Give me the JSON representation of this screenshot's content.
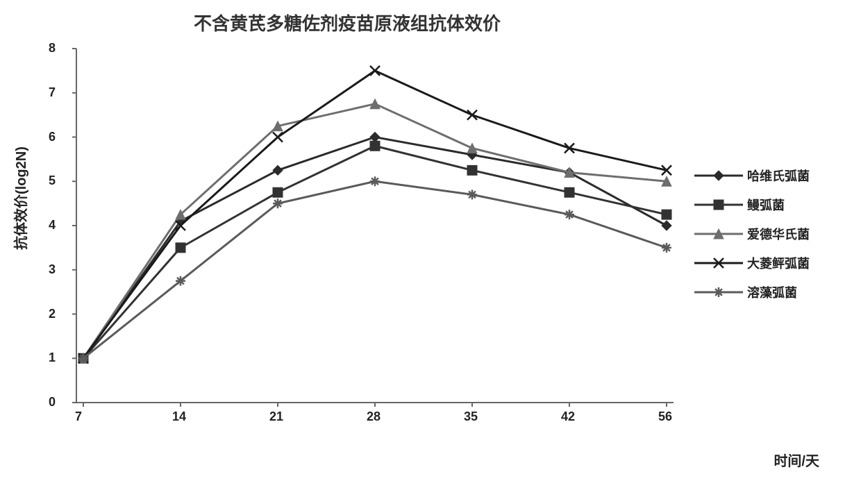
{
  "chart": {
    "type": "line",
    "title": "不含黄芪多糖佐剂疫苗原液组抗体效价",
    "title_fontsize": 26,
    "x_label": "时间/天",
    "y_label": "抗体效价(log2N)",
    "label_fontsize": 20,
    "tick_fontsize": 18,
    "legend_fontsize": 18,
    "background_color": "#ffffff",
    "axis_color": "#666666",
    "tick_color": "#666666",
    "x_categories": [
      "7",
      "14",
      "21",
      "28",
      "35",
      "42",
      "56"
    ],
    "y_ticks": [
      0,
      1,
      2,
      3,
      4,
      5,
      6,
      7,
      8
    ],
    "ylim": [
      0,
      8
    ],
    "line_width": 3,
    "marker_size": 7,
    "series": [
      {
        "name": "哈维氏弧菌",
        "marker": "diamond",
        "color": "#2b2b2b",
        "values": [
          1.0,
          4.1,
          5.25,
          6.0,
          5.6,
          5.2,
          4.0
        ]
      },
      {
        "name": "鳗弧菌",
        "marker": "square",
        "color": "#323232",
        "values": [
          1.0,
          3.5,
          4.75,
          5.8,
          5.25,
          4.75,
          4.25
        ]
      },
      {
        "name": "爱德华氏菌",
        "marker": "triangle",
        "color": "#6e6e6e",
        "values": [
          1.0,
          4.25,
          6.25,
          6.75,
          5.75,
          5.2,
          5.0
        ]
      },
      {
        "name": "大菱鲆弧菌",
        "marker": "x",
        "color": "#1a1a1a",
        "values": [
          1.0,
          4.0,
          6.0,
          7.5,
          6.5,
          5.75,
          5.25
        ]
      },
      {
        "name": "溶藻弧菌",
        "marker": "star",
        "color": "#5a5a5a",
        "values": [
          1.0,
          2.75,
          4.5,
          5.0,
          4.7,
          4.25,
          3.5
        ]
      }
    ]
  }
}
